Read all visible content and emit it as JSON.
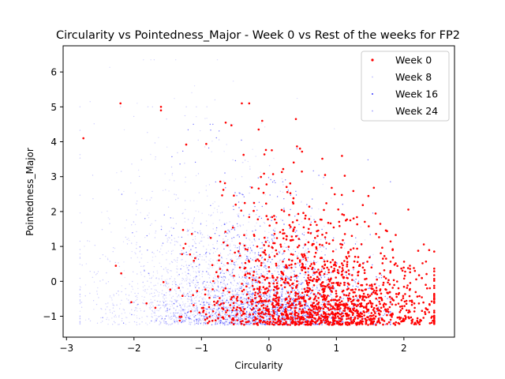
{
  "chart_data": {
    "type": "scatter",
    "title": "Circularity vs Pointedness_Major - Week 0 vs Rest of the weeks for FP2",
    "xlabel": "Circularity",
    "ylabel": "Pointedness_Major",
    "xlim": [
      -3.05,
      2.75
    ],
    "ylim": [
      -1.6,
      6.75
    ],
    "xticks": [
      -3,
      -2,
      -1,
      0,
      1,
      2
    ],
    "yticks": [
      -1,
      0,
      1,
      2,
      3,
      4,
      5,
      6
    ],
    "legend_position": "top-right",
    "grid": false,
    "series": [
      {
        "name": "Week 0",
        "color": "#ff0000",
        "marker_size": "large",
        "x_center": 0.8,
        "x_spread": 0.85,
        "y_center": 0.0,
        "x_range": [
          -2.75,
          2.45
        ],
        "y_range": [
          -1.25,
          5.1
        ],
        "count": 1600,
        "highlights": [
          [
            -2.75,
            4.1
          ],
          [
            -2.2,
            5.1
          ],
          [
            -1.6,
            5.0
          ],
          [
            -1.6,
            4.9
          ],
          [
            0.4,
            4.65
          ],
          [
            -0.1,
            4.6
          ]
        ]
      },
      {
        "name": "Week 8",
        "color": "#c0c0ff",
        "marker_size": "small",
        "x_center": -0.5,
        "x_spread": 0.9,
        "y_center": 0.5,
        "x_range": [
          -2.8,
          1.6
        ],
        "y_range": [
          -1.25,
          6.35
        ],
        "count": 1500,
        "highlights": [
          [
            -1.7,
            6.35
          ],
          [
            -2.65,
            5.15
          ],
          [
            -0.8,
            5.2
          ]
        ]
      },
      {
        "name": "Week 16",
        "color": "#0000ff",
        "marker_size": "small",
        "x_center": 0.1,
        "x_spread": 0.75,
        "y_center": 0.0,
        "x_range": [
          -2.8,
          1.8
        ],
        "y_range": [
          -1.25,
          4.5
        ],
        "count": 1500,
        "highlights": []
      },
      {
        "name": "Week 24",
        "color": "#a0a0ff",
        "marker_size": "small",
        "x_center": -1.0,
        "x_spread": 0.9,
        "y_center": 0.6,
        "x_range": [
          -2.8,
          1.2
        ],
        "y_range": [
          -1.25,
          5.0
        ],
        "count": 1000,
        "highlights": []
      }
    ]
  }
}
